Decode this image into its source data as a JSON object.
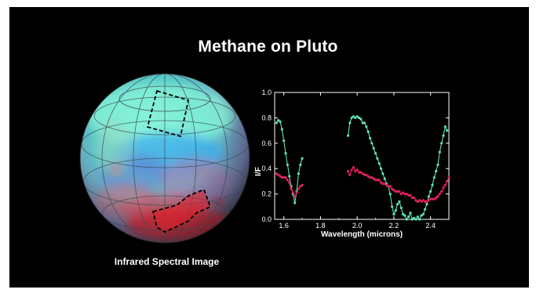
{
  "slide": {
    "title": "Methane on Pluto",
    "caption": "Infrared Spectral Image",
    "globe_icon": "pluto-infrared-globe"
  },
  "chart_data": {
    "type": "line",
    "xlabel": "Wavelength (microns)",
    "ylabel": "I/F",
    "xlim": [
      1.55,
      2.5
    ],
    "ylim": [
      0.0,
      1.0
    ],
    "x_ticks": [
      1.6,
      1.8,
      2.0,
      2.2,
      2.4
    ],
    "x_tick_labels": [
      "1.6",
      "1.8",
      "2.0",
      "2.2",
      "2.4"
    ],
    "y_ticks": [
      0.0,
      0.2,
      0.4,
      0.6,
      0.8,
      1.0
    ],
    "y_tick_labels": [
      "0.0",
      "0.2",
      "0.4",
      "0.6",
      "0.8",
      "1.0"
    ],
    "grid": false,
    "legend": "none",
    "colors": {
      "green": "#5fe3b6",
      "red": "#e0235a",
      "background": "#000000",
      "plot_bg": "#ffffff"
    },
    "series": [
      {
        "color": "#5fe3b6",
        "segments": [
          {
            "x": [
              1.56,
              1.57,
              1.58,
              1.59,
              1.6,
              1.61,
              1.62,
              1.63,
              1.64,
              1.65,
              1.66,
              1.67,
              1.68,
              1.69,
              1.7
            ],
            "y": [
              0.76,
              0.78,
              0.77,
              0.71,
              0.62,
              0.52,
              0.43,
              0.34,
              0.26,
              0.2,
              0.13,
              0.22,
              0.36,
              0.43,
              0.48
            ]
          },
          {
            "x": [
              1.95,
              1.96,
              1.97,
              1.98,
              1.99,
              2.0,
              2.01,
              2.02,
              2.03,
              2.04,
              2.05,
              2.06,
              2.07,
              2.08,
              2.09,
              2.1,
              2.11,
              2.12,
              2.13,
              2.14,
              2.15,
              2.16,
              2.17,
              2.18,
              2.19,
              2.2,
              2.21,
              2.22,
              2.23,
              2.24,
              2.25,
              2.26,
              2.27,
              2.28,
              2.29,
              2.3,
              2.31,
              2.32,
              2.33,
              2.34,
              2.35,
              2.36,
              2.37,
              2.38,
              2.39,
              2.4,
              2.41,
              2.42,
              2.43,
              2.44,
              2.45,
              2.46,
              2.47,
              2.48,
              2.49
            ],
            "y": [
              0.66,
              0.76,
              0.8,
              0.81,
              0.8,
              0.81,
              0.8,
              0.79,
              0.76,
              0.76,
              0.73,
              0.69,
              0.64,
              0.6,
              0.56,
              0.52,
              0.48,
              0.44,
              0.4,
              0.36,
              0.32,
              0.28,
              0.26,
              0.2,
              0.1,
              0.04,
              0.07,
              0.12,
              0.14,
              0.09,
              0.04,
              0.03,
              0.0,
              0.02,
              0.05,
              0.0,
              0.01,
              0.0,
              0.02,
              0.0,
              0.03,
              0.04,
              0.08,
              0.12,
              0.18,
              0.22,
              0.27,
              0.33,
              0.38,
              0.43,
              0.53,
              0.6,
              0.66,
              0.73,
              0.7
            ]
          }
        ]
      },
      {
        "color": "#e0235a",
        "segments": [
          {
            "x": [
              1.56,
              1.57,
              1.58,
              1.59,
              1.6,
              1.61,
              1.62,
              1.63,
              1.64,
              1.65,
              1.66,
              1.67,
              1.68,
              1.69,
              1.7
            ],
            "y": [
              0.36,
              0.35,
              0.34,
              0.33,
              0.33,
              0.33,
              0.31,
              0.29,
              0.24,
              0.21,
              0.18,
              0.21,
              0.24,
              0.26,
              0.27
            ]
          },
          {
            "x": [
              1.95,
              1.96,
              1.97,
              1.98,
              1.99,
              2.0,
              2.01,
              2.02,
              2.03,
              2.04,
              2.05,
              2.06,
              2.07,
              2.08,
              2.09,
              2.1,
              2.11,
              2.12,
              2.13,
              2.14,
              2.15,
              2.16,
              2.17,
              2.18,
              2.19,
              2.2,
              2.21,
              2.22,
              2.23,
              2.24,
              2.25,
              2.26,
              2.27,
              2.28,
              2.29,
              2.3,
              2.31,
              2.32,
              2.33,
              2.34,
              2.35,
              2.36,
              2.37,
              2.38,
              2.39,
              2.4,
              2.41,
              2.42,
              2.43,
              2.44,
              2.45,
              2.46,
              2.47,
              2.48,
              2.49,
              2.5
            ],
            "y": [
              0.38,
              0.35,
              0.39,
              0.41,
              0.38,
              0.39,
              0.37,
              0.37,
              0.36,
              0.35,
              0.35,
              0.34,
              0.33,
              0.33,
              0.32,
              0.31,
              0.31,
              0.31,
              0.29,
              0.28,
              0.28,
              0.27,
              0.26,
              0.26,
              0.24,
              0.23,
              0.22,
              0.22,
              0.22,
              0.2,
              0.21,
              0.2,
              0.2,
              0.19,
              0.19,
              0.17,
              0.17,
              0.15,
              0.14,
              0.15,
              0.14,
              0.15,
              0.14,
              0.14,
              0.15,
              0.16,
              0.16,
              0.16,
              0.17,
              0.18,
              0.2,
              0.22,
              0.25,
              0.27,
              0.3,
              0.33
            ]
          }
        ]
      }
    ]
  }
}
